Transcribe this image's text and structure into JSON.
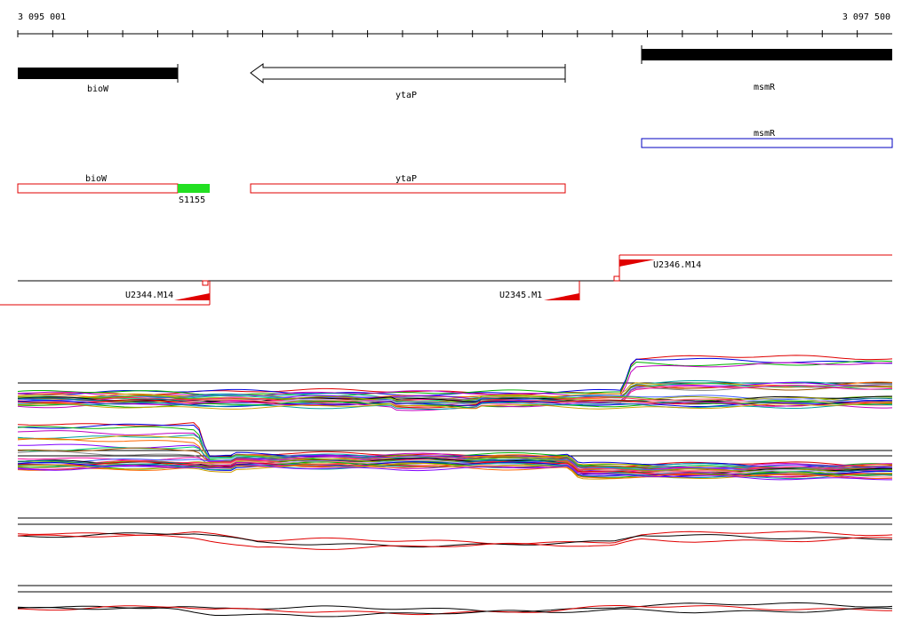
{
  "ruler": {
    "start_label": "3 095 001",
    "end_label": "3 097 500"
  },
  "genes": {
    "biow": "bioW",
    "ytap": "ytaP",
    "msmr": "msmR"
  },
  "annotations": {
    "msmr": "msmR",
    "biow": "bioW",
    "ytap": "ytaP",
    "s1155": "S1155"
  },
  "transcripts": {
    "u2346": "U2346.M14",
    "u2344": "U2344.M14",
    "u2345": "U2345.M1"
  },
  "colors": {
    "feature_red": "#e00000",
    "feature_blue": "#0000c0",
    "s1155_green": "#22e022",
    "gene_fill": "#000000"
  },
  "icons": {
    "arrow": "left-arrow-icon",
    "flag": "red-triangle-flag-icon"
  }
}
